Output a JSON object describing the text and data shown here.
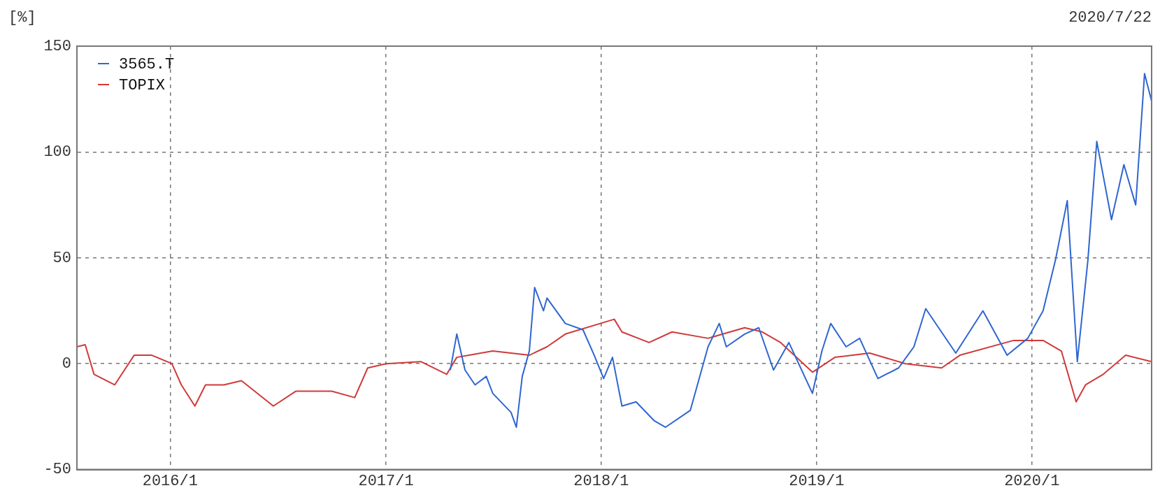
{
  "chart_data": {
    "type": "line",
    "ylabel": "[%]",
    "annotations": [
      "2020/7/22"
    ],
    "xlim": [
      "2015-07-27",
      "2020-07-22"
    ],
    "xticks": [
      {
        "value": "2016-01-01",
        "label": "2016/1"
      },
      {
        "value": "2017-01-01",
        "label": "2017/1"
      },
      {
        "value": "2018-01-01",
        "label": "2018/1"
      },
      {
        "value": "2019-01-01",
        "label": "2019/1"
      },
      {
        "value": "2020-01-01",
        "label": "2020/1"
      }
    ],
    "ylim": [
      -50,
      150
    ],
    "yticks": [
      -50,
      0,
      50,
      100,
      150
    ],
    "grid": true,
    "legend": "top left",
    "marker": "none",
    "line_style": "solid",
    "series": [
      {
        "name": "3565.T",
        "color": "#2f66d0",
        "x": [
          "2017-04-20",
          "2017-05-01",
          "2017-05-15",
          "2017-06-01",
          "2017-06-20",
          "2017-07-01",
          "2017-08-01",
          "2017-08-10",
          "2017-08-20",
          "2017-09-01",
          "2017-09-10",
          "2017-09-25",
          "2017-10-01",
          "2017-11-01",
          "2017-12-01",
          "2017-12-20",
          "2018-01-05",
          "2018-01-20",
          "2018-02-05",
          "2018-03-01",
          "2018-04-01",
          "2018-04-20",
          "2018-06-01",
          "2018-07-01",
          "2018-07-20",
          "2018-08-01",
          "2018-09-01",
          "2018-09-25",
          "2018-10-20",
          "2018-11-15",
          "2018-12-25",
          "2019-01-10",
          "2019-01-25",
          "2019-02-20",
          "2019-03-15",
          "2019-04-15",
          "2019-05-20",
          "2019-06-15",
          "2019-07-05",
          "2019-08-25",
          "2019-10-10",
          "2019-11-20",
          "2019-12-25",
          "2020-01-20",
          "2020-02-10",
          "2020-03-01",
          "2020-03-18",
          "2020-04-05",
          "2020-04-20",
          "2020-05-15",
          "2020-06-05",
          "2020-06-25",
          "2020-07-10",
          "2020-07-22"
        ],
        "values": [
          -3,
          14,
          -3,
          -10,
          -6,
          -14,
          -23,
          -30,
          -6,
          6,
          36,
          25,
          31,
          19,
          16,
          4,
          -7,
          3,
          -20,
          -18,
          -27,
          -30,
          -22,
          8,
          19,
          8,
          14,
          17,
          -3,
          10,
          -14,
          6,
          19,
          8,
          12,
          -7,
          -2,
          8,
          26,
          5,
          25,
          4,
          12,
          25,
          49,
          77,
          1,
          49,
          105,
          68,
          94,
          75,
          137,
          124
        ]
      },
      {
        "name": "TOPIX",
        "color": "#d03a3a",
        "x": [
          "2015-07-27",
          "2015-08-10",
          "2015-08-25",
          "2015-09-29",
          "2015-11-01",
          "2015-12-01",
          "2016-01-04",
          "2016-01-20",
          "2016-02-12",
          "2016-03-01",
          "2016-04-01",
          "2016-05-01",
          "2016-06-24",
          "2016-08-01",
          "2016-10-01",
          "2016-11-09",
          "2016-12-01",
          "2017-01-01",
          "2017-03-01",
          "2017-04-14",
          "2017-05-01",
          "2017-07-01",
          "2017-09-01",
          "2017-10-01",
          "2017-11-01",
          "2018-01-23",
          "2018-02-05",
          "2018-03-23",
          "2018-05-01",
          "2018-07-01",
          "2018-09-01",
          "2018-10-01",
          "2018-11-01",
          "2018-12-25",
          "2019-02-01",
          "2019-04-01",
          "2019-06-01",
          "2019-08-01",
          "2019-09-01",
          "2019-12-01",
          "2020-01-20",
          "2020-02-20",
          "2020-03-16",
          "2020-04-01",
          "2020-05-01",
          "2020-06-08",
          "2020-07-22"
        ],
        "values": [
          8,
          9,
          -5,
          -10,
          4,
          4,
          0,
          -10,
          -20,
          -10,
          -10,
          -8,
          -20,
          -13,
          -13,
          -16,
          -2,
          0,
          1,
          -5,
          3,
          6,
          4,
          8,
          14,
          21,
          15,
          10,
          15,
          12,
          17,
          15,
          10,
          -4,
          3,
          5,
          0,
          -2,
          4,
          11,
          11,
          6,
          -18,
          -10,
          -5,
          4,
          1
        ]
      }
    ]
  }
}
